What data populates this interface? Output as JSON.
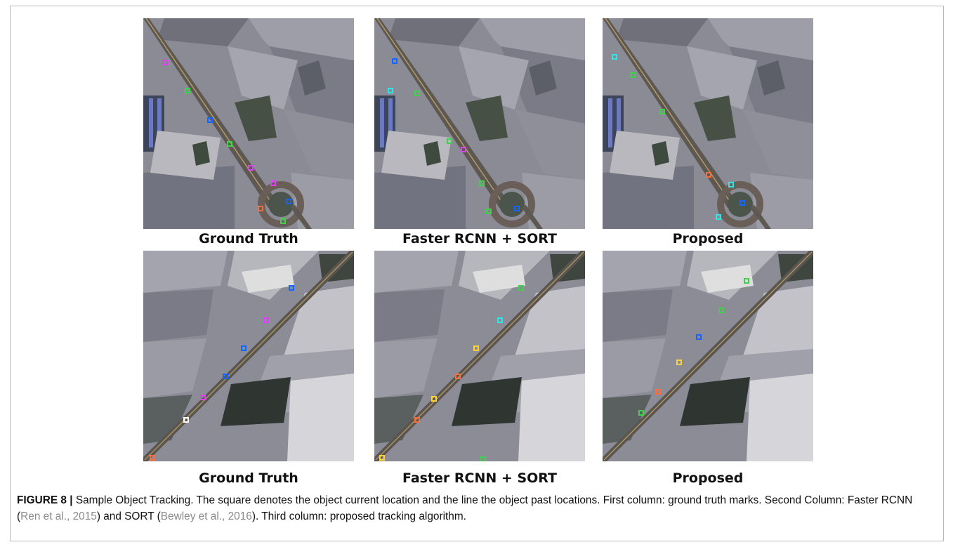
{
  "figure": {
    "columns": [
      {
        "label": "Ground Truth"
      },
      {
        "label": "Faster RCNN + SORT"
      },
      {
        "label": "Proposed"
      }
    ],
    "caption": {
      "label": "FIGURE 8 |",
      "text_1": " Sample Object Tracking. The square denotes the object current location and the line the object past locations. First column: ground truth marks. Second Column: Faster RCNN (",
      "cite_1": "Ren et al., 2015",
      "text_2": ") and SORT (",
      "cite_2": "Bewley et al., 2016",
      "text_3": "). Third column: proposed tracking algorithm."
    }
  },
  "colors": {
    "field_dark": "#4e5259",
    "field_mid": "#888a94",
    "field_light": "#c9c9cf",
    "road": "#6a5f58",
    "marks": [
      "#e040fb",
      "#3fd14a",
      "#1565ff",
      "#ff6d3a",
      "#2ee6e6",
      "#ffd23a",
      "#ffffff"
    ]
  }
}
